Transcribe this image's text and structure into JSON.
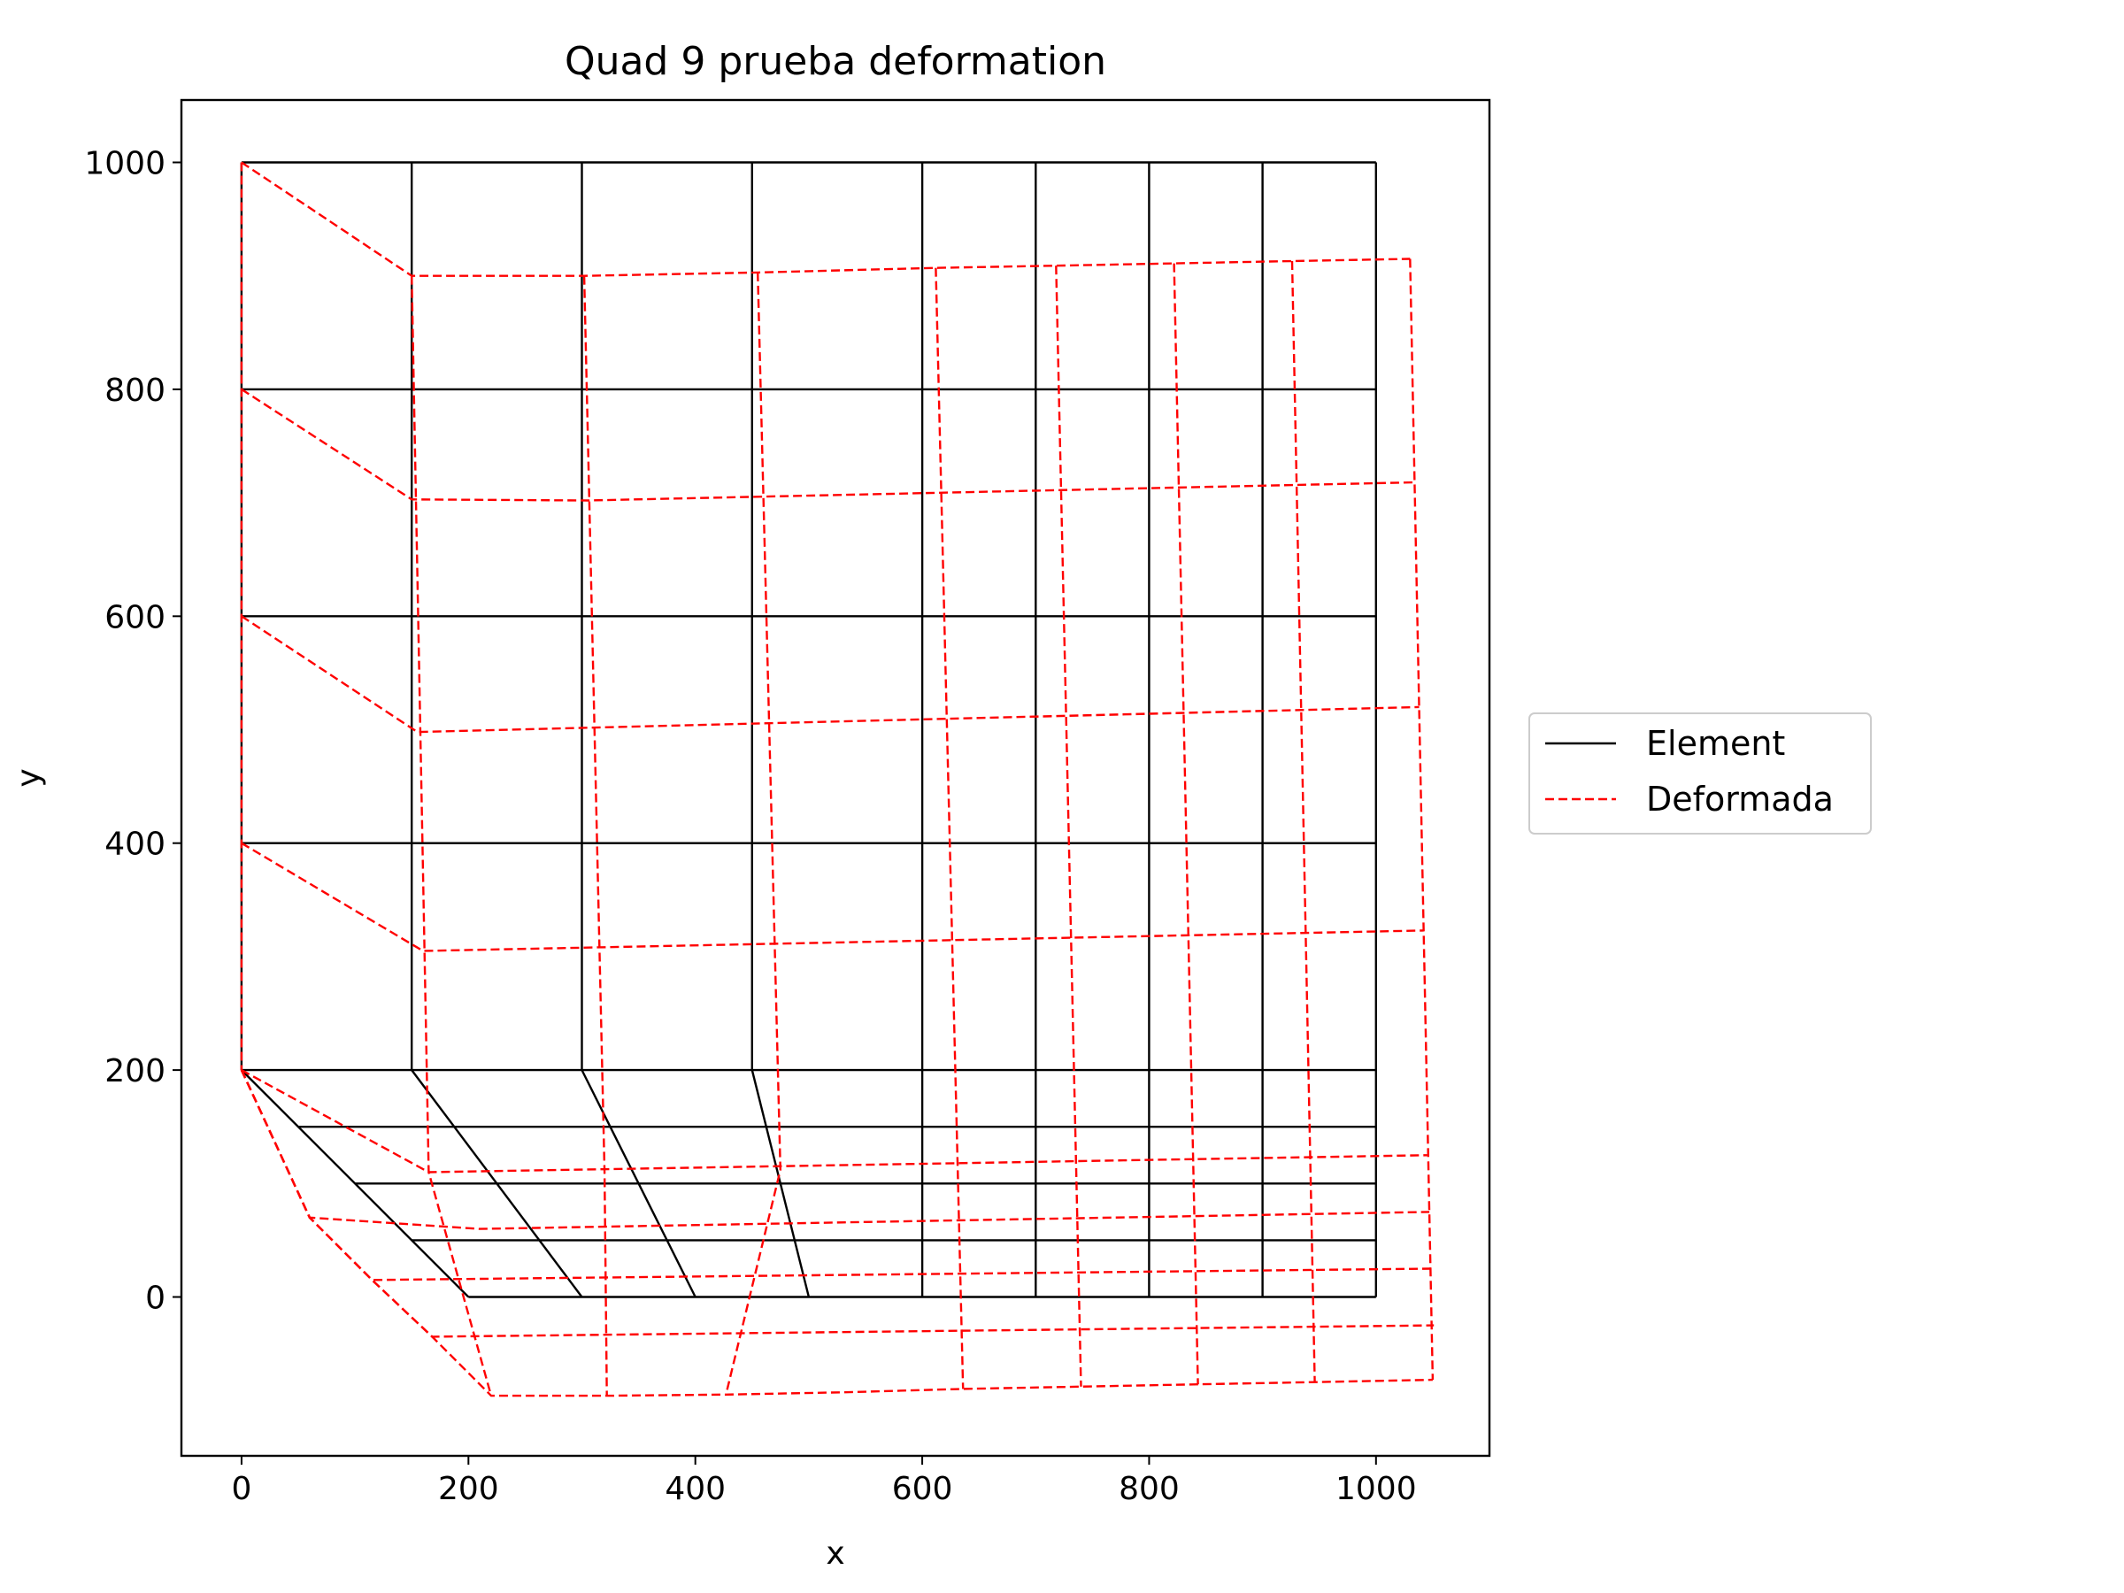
{
  "chart_data": {
    "type": "line",
    "title": "Quad 9 prueba deformation",
    "xlabel": "x",
    "ylabel": "y",
    "xlim": [
      -53,
      1100
    ],
    "ylim": [
      -140,
      1055
    ],
    "xticks": [
      0,
      200,
      400,
      600,
      800,
      1000
    ],
    "yticks": [
      0,
      200,
      400,
      600,
      800,
      1000
    ],
    "grid": false,
    "legend": {
      "placement": "center-right outside",
      "entries": [
        {
          "label": "Element",
          "color": "#000000",
          "style": "solid"
        },
        {
          "label": "Deformada",
          "color": "#ff0000",
          "style": "dashed"
        }
      ]
    },
    "series": [
      {
        "name": "Element",
        "color": "#000000",
        "style": "solid",
        "polylines": [
          [
            [
              0,
              1000
            ],
            [
              1000,
              1000
            ]
          ],
          [
            [
              0,
              800
            ],
            [
              1000,
              800
            ]
          ],
          [
            [
              0,
              600
            ],
            [
              1000,
              600
            ]
          ],
          [
            [
              0,
              400
            ],
            [
              1000,
              400
            ]
          ],
          [
            [
              0,
              200
            ],
            [
              1000,
              200
            ]
          ],
          [
            [
              50,
              150
            ],
            [
              1000,
              150
            ]
          ],
          [
            [
              100,
              100
            ],
            [
              1000,
              100
            ]
          ],
          [
            [
              150,
              50
            ],
            [
              1000,
              50
            ]
          ],
          [
            [
              200,
              0
            ],
            [
              1000,
              0
            ]
          ],
          [
            [
              0,
              200
            ],
            [
              0,
              1000
            ]
          ],
          [
            [
              150,
              200
            ],
            [
              150,
              1000
            ]
          ],
          [
            [
              300,
              200
            ],
            [
              300,
              1000
            ]
          ],
          [
            [
              450,
              200
            ],
            [
              450,
              1000
            ]
          ],
          [
            [
              600,
              0
            ],
            [
              600,
              1000
            ]
          ],
          [
            [
              700,
              0
            ],
            [
              700,
              1000
            ]
          ],
          [
            [
              800,
              0
            ],
            [
              800,
              1000
            ]
          ],
          [
            [
              900,
              0
            ],
            [
              900,
              1000
            ]
          ],
          [
            [
              1000,
              0
            ],
            [
              1000,
              1000
            ]
          ],
          [
            [
              0,
              200
            ],
            [
              200,
              0
            ]
          ],
          [
            [
              150,
              200
            ],
            [
              300,
              0
            ]
          ],
          [
            [
              300,
              200
            ],
            [
              400,
              0
            ]
          ],
          [
            [
              450,
              200
            ],
            [
              500,
              0
            ]
          ]
        ]
      },
      {
        "name": "Deformada",
        "color": "#ff0000",
        "style": "dashed",
        "polylines": [
          [
            [
              0,
              1000
            ],
            [
              0,
              200
            ]
          ],
          [
            [
              0,
              1000
            ],
            [
              150,
              900
            ],
            [
              302,
              900
            ],
            [
              455,
              903
            ],
            [
              612,
              907
            ],
            [
              718,
              909
            ],
            [
              822,
              911
            ],
            [
              926,
              913
            ],
            [
              1030,
              915
            ]
          ],
          [
            [
              0,
              800
            ],
            [
              150,
              703
            ],
            [
              305,
              702
            ],
            [
              1035,
              718
            ]
          ],
          [
            [
              0,
              600
            ],
            [
              155,
              498
            ],
            [
              1038,
              520
            ]
          ],
          [
            [
              0,
              400
            ],
            [
              160,
              305
            ],
            [
              1042,
              323
            ]
          ],
          [
            [
              0,
              200
            ],
            [
              165,
              110
            ],
            [
              1045,
              125
            ]
          ],
          [
            [
              0,
              200
            ],
            [
              60,
              70
            ],
            [
              210,
              60
            ],
            [
              1047,
              75
            ]
          ],
          [
            [
              0,
              200
            ],
            [
              60,
              70
            ],
            [
              115,
              15
            ],
            [
              1049,
              25
            ]
          ],
          [
            [
              0,
              200
            ],
            [
              60,
              70
            ],
            [
              115,
              15
            ],
            [
              168,
              -35
            ],
            [
              1051,
              -25
            ]
          ],
          [
            [
              0,
              200
            ],
            [
              60,
              70
            ],
            [
              115,
              15
            ],
            [
              168,
              -35
            ],
            [
              220,
              -87
            ],
            [
              322,
              -87
            ],
            [
              427,
              -86
            ],
            [
              532,
              -84
            ],
            [
              636,
              -81
            ],
            [
              740,
              -79
            ],
            [
              843,
              -77
            ],
            [
              946,
              -75
            ],
            [
              1050,
              -73
            ]
          ],
          [
            [
              150,
              900
            ],
            [
              165,
              110
            ],
            [
              220,
              -87
            ]
          ],
          [
            [
              302,
              900
            ],
            [
              320,
              110
            ],
            [
              322,
              -87
            ]
          ],
          [
            [
              455,
              903
            ],
            [
              475,
              112
            ],
            [
              427,
              -86
            ]
          ],
          [
            [
              612,
              907
            ],
            [
              636,
              -81
            ]
          ],
          [
            [
              718,
              909
            ],
            [
              740,
              -79
            ]
          ],
          [
            [
              822,
              911
            ],
            [
              843,
              -77
            ]
          ],
          [
            [
              926,
              913
            ],
            [
              946,
              -75
            ]
          ],
          [
            [
              1030,
              915
            ],
            [
              1050,
              -73
            ]
          ]
        ]
      }
    ]
  }
}
